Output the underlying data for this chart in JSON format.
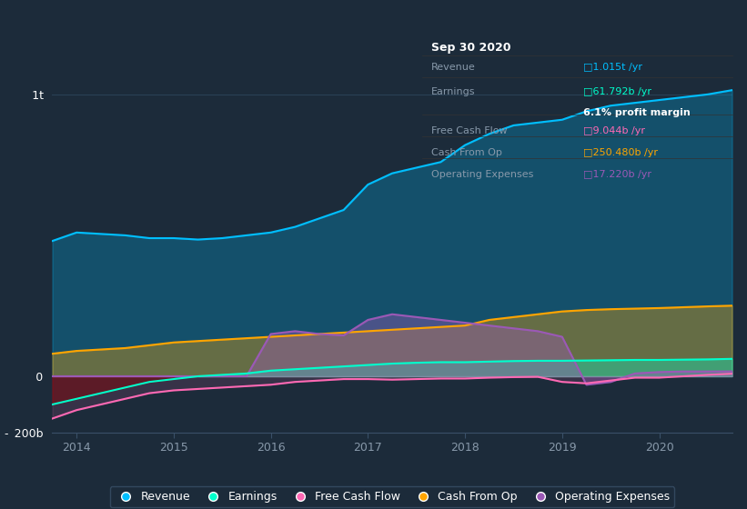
{
  "bg_color": "#1c2b3a",
  "colors": {
    "revenue": "#00bfff",
    "earnings": "#00ffcc",
    "fcf": "#ff69b4",
    "cashop": "#ffa500",
    "opex": "#9b59b6"
  },
  "title_box": {
    "date": "Sep 30 2020",
    "revenue_label": "Revenue",
    "revenue_value": "1.015t",
    "revenue_color": "#00bfff",
    "earnings_label": "Earnings",
    "earnings_value": "61.792b",
    "earnings_color": "#00ffcc",
    "profit_margin": "6.1% profit margin",
    "fcf_label": "Free Cash Flow",
    "fcf_value": "9.044b",
    "fcf_color": "#ff69b4",
    "cashop_label": "Cash From Op",
    "cashop_value": "250.480b",
    "cashop_color": "#ffa500",
    "opex_label": "Operating Expenses",
    "opex_value": "17.220b",
    "opex_color": "#9b59b6"
  },
  "ylim": [
    -200000000000,
    1100000000000
  ],
  "ytick_vals": [
    -200000000000,
    0,
    1000000000000
  ],
  "ytick_labels": [
    "- 200b",
    " 0",
    " 1t"
  ],
  "xtick_vals": [
    2014,
    2015,
    2016,
    2017,
    2018,
    2019,
    2020
  ],
  "xtick_labels": [
    "2014",
    "2015",
    "2016",
    "2017",
    "2018",
    "2019",
    "2020"
  ],
  "years": [
    2013.75,
    2014.0,
    2014.25,
    2014.5,
    2014.75,
    2015.0,
    2015.25,
    2015.5,
    2015.75,
    2016.0,
    2016.25,
    2016.5,
    2016.75,
    2017.0,
    2017.25,
    2017.5,
    2017.75,
    2018.0,
    2018.25,
    2018.5,
    2018.75,
    2019.0,
    2019.25,
    2019.5,
    2019.75,
    2020.0,
    2020.25,
    2020.5,
    2020.75
  ],
  "revenue": [
    480000000000,
    510000000000,
    505000000000,
    500000000000,
    490000000000,
    490000000000,
    485000000000,
    490000000000,
    500000000000,
    510000000000,
    530000000000,
    560000000000,
    590000000000,
    680000000000,
    720000000000,
    740000000000,
    760000000000,
    820000000000,
    860000000000,
    890000000000,
    900000000000,
    910000000000,
    940000000000,
    960000000000,
    970000000000,
    980000000000,
    990000000000,
    1000000000000,
    1015000000000
  ],
  "earnings": [
    -100000000000,
    -80000000000,
    -60000000000,
    -40000000000,
    -20000000000,
    -10000000000,
    0,
    5000000000,
    10000000000,
    20000000000,
    25000000000,
    30000000000,
    35000000000,
    40000000000,
    45000000000,
    48000000000,
    50000000000,
    50000000000,
    52000000000,
    54000000000,
    55000000000,
    55000000000,
    56000000000,
    57000000000,
    58000000000,
    58000000000,
    59000000000,
    60000000000,
    61792000000
  ],
  "fcf": [
    -150000000000,
    -120000000000,
    -100000000000,
    -80000000000,
    -60000000000,
    -50000000000,
    -45000000000,
    -40000000000,
    -35000000000,
    -30000000000,
    -20000000000,
    -15000000000,
    -10000000000,
    -10000000000,
    -12000000000,
    -10000000000,
    -8000000000,
    -8000000000,
    -5000000000,
    -3000000000,
    -2000000000,
    -20000000000,
    -25000000000,
    -15000000000,
    -5000000000,
    -5000000000,
    0,
    5000000000,
    9044000000
  ],
  "cashop": [
    80000000000,
    90000000000,
    95000000000,
    100000000000,
    110000000000,
    120000000000,
    125000000000,
    130000000000,
    135000000000,
    140000000000,
    145000000000,
    150000000000,
    155000000000,
    160000000000,
    165000000000,
    170000000000,
    175000000000,
    180000000000,
    200000000000,
    210000000000,
    220000000000,
    230000000000,
    235000000000,
    238000000000,
    240000000000,
    242000000000,
    245000000000,
    248000000000,
    250480000000
  ],
  "opex": [
    0,
    0,
    0,
    0,
    0,
    0,
    0,
    0,
    0,
    150000000000,
    160000000000,
    150000000000,
    145000000000,
    200000000000,
    220000000000,
    210000000000,
    200000000000,
    190000000000,
    180000000000,
    170000000000,
    160000000000,
    140000000000,
    -30000000000,
    -20000000000,
    10000000000,
    15000000000,
    17000000000,
    17000000000,
    17220000000
  ]
}
